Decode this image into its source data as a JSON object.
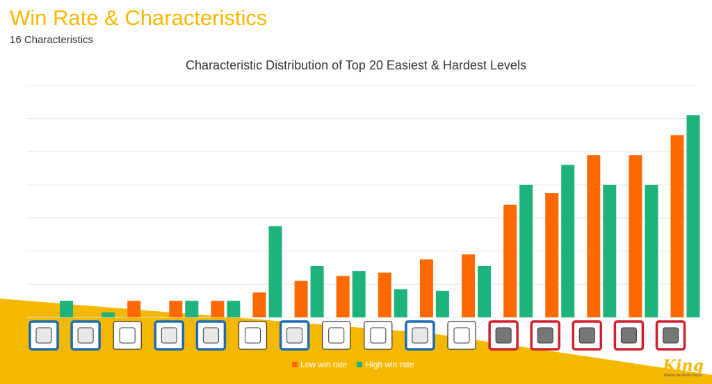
{
  "slide": {
    "title": "Win Rate & Characteristics",
    "subtitle": "16 Characteristics"
  },
  "logo": {
    "text": "King",
    "tagline": "Making the World Playful"
  },
  "colors": {
    "low": "#FF6A00",
    "high": "#1DB37A",
    "accent": "#F5B800",
    "box_blue": "#1C6BB5",
    "box_red": "#D0202C",
    "box_plain": "#333333"
  },
  "chart_data": {
    "type": "bar",
    "title": "Characteristic Distribution of Top 20 Easiest & Hardest Levels",
    "xlabel": "",
    "ylabel": "",
    "ylim": [
      0,
      14
    ],
    "grid": true,
    "legend_placement": "bottom",
    "categories": [
      "stone-block-icon",
      "orange-candy-dispenser-icon",
      "dotted-tile-icon",
      "color-bomb-icon",
      "wrapped-candy-icon",
      "conveyor-icon",
      "lock-icon",
      "cracked-tile-icon",
      "portal-icon",
      "striped-tile-icon",
      "layered-frame-icon",
      "multilayer-block-icon",
      "riveted-block-icon",
      "grey-block-icon",
      "candy-cane-icon",
      "star-burst-icon"
    ],
    "category_frames": [
      "blue",
      "blue",
      "plain",
      "blue",
      "blue",
      "plain",
      "blue",
      "plain",
      "plain",
      "blue",
      "plain",
      "red",
      "red",
      "red",
      "red",
      "red"
    ],
    "series": [
      {
        "name": "Low win rate",
        "values": [
          0,
          0,
          1,
          1,
          1,
          1.5,
          2.2,
          2.5,
          2.7,
          3.5,
          3.8,
          6.8,
          7.5,
          9.8,
          9.8,
          11
        ]
      },
      {
        "name": "High win rate",
        "values": [
          1,
          0.3,
          0,
          1,
          1,
          5.5,
          3.1,
          2.8,
          1.7,
          1.6,
          3.1,
          8,
          9.2,
          8,
          8,
          12.2
        ]
      }
    ]
  }
}
